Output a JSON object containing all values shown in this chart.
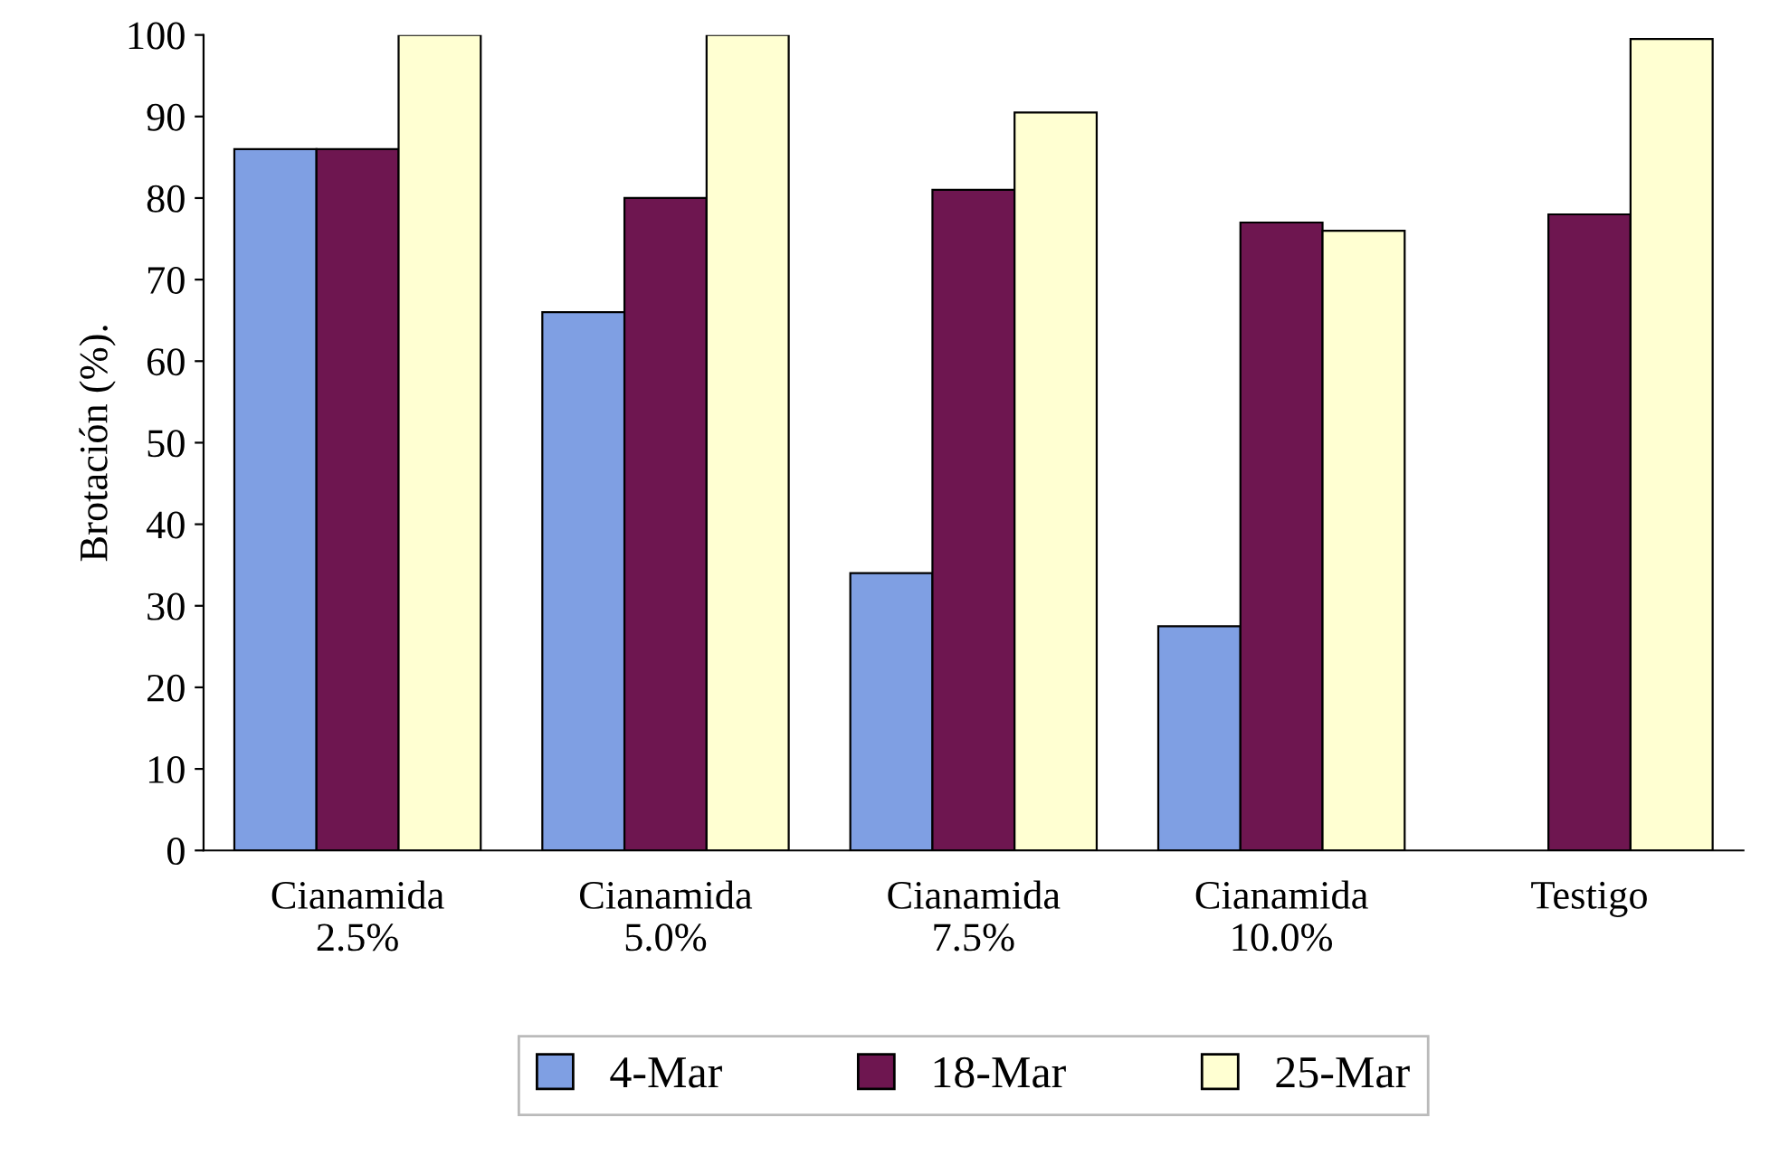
{
  "chart_data": {
    "type": "bar",
    "ylabel": "Brotación (%).",
    "categories": [
      "Cianamida\n2.5%",
      "Cianamida\n5.0%",
      "Cianamida\n7.5%",
      "Cianamida\n10.0%",
      "Testigo"
    ],
    "series": [
      {
        "name": "4-Mar",
        "color": "#7f9fe3",
        "values": [
          86,
          66,
          34,
          27.5,
          null
        ]
      },
      {
        "name": "18-Mar",
        "color": "#6e1650",
        "values": [
          86,
          80,
          81,
          77,
          78
        ]
      },
      {
        "name": "25-Mar",
        "color": "#ffffd2",
        "values": [
          100,
          100,
          90.5,
          76,
          99.5
        ]
      }
    ],
    "ylim": [
      0,
      100
    ],
    "yticks": [
      0,
      10,
      20,
      30,
      40,
      50,
      60,
      70,
      80,
      90,
      100
    ],
    "grid": false,
    "legend": "bottom"
  }
}
